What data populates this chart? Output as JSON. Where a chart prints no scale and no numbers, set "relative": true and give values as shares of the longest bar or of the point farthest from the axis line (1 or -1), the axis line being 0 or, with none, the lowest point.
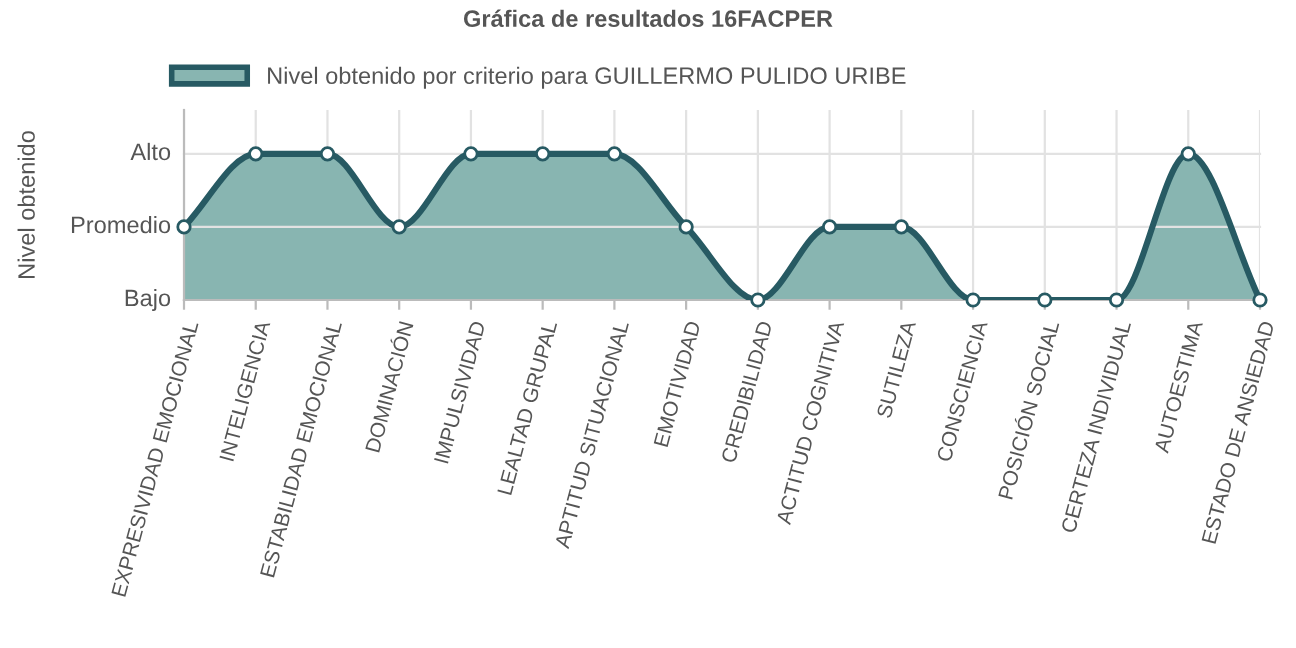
{
  "chart_data": {
    "type": "area",
    "title": "Gráfica de resultados 16FACPER",
    "ylabel": "Nivel obtenido",
    "categories": [
      "EXPRESIVIDAD EMOCIONAL",
      "INTELIGENCIA",
      "ESTABILIDAD EMOCIONAL",
      "DOMINACIÓN",
      "IMPULSIVIDAD",
      "LEALTAD GRUPAL",
      "APTITUD SITUACIONAL",
      "EMOTIVIDAD",
      "CREDIBILIDAD",
      "ACTITUD COGNITIVA",
      "SUTILEZA",
      "CONSCIENCIA",
      "POSICIÓN SOCIAL",
      "CERTEZA INDIVIDUAL",
      "AUTOESTIMA",
      "ESTADO DE ANSIEDAD"
    ],
    "series": [
      {
        "name": "Nivel obtenido por criterio para GUILLERMO PULIDO URIBE",
        "color": "#275a63",
        "values": [
          0.5,
          1,
          1,
          0.5,
          1,
          1,
          1,
          0.5,
          0,
          0.5,
          0.5,
          0,
          0,
          0,
          1,
          0
        ]
      }
    ],
    "relative": true,
    "annotations": [
      "Bajo",
      "Promedio",
      "Alto"
    ],
    "grid": "x",
    "legend": "top",
    "marker": "circle",
    "line_style": "solid"
  }
}
